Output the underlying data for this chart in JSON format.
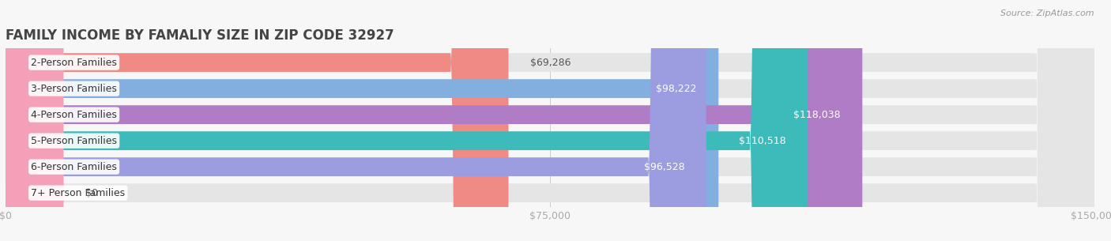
{
  "title": "FAMILY INCOME BY FAMALIY SIZE IN ZIP CODE 32927",
  "source": "Source: ZipAtlas.com",
  "categories": [
    "2-Person Families",
    "3-Person Families",
    "4-Person Families",
    "5-Person Families",
    "6-Person Families",
    "7+ Person Families"
  ],
  "values": [
    69286,
    98222,
    118038,
    110518,
    96528,
    0
  ],
  "bar_colors": [
    "#F08A85",
    "#82AEE0",
    "#B07CC6",
    "#3DBBBB",
    "#9B9DE0",
    "#F4A0B8"
  ],
  "xlim": [
    0,
    150000
  ],
  "xticks": [
    0,
    75000,
    150000
  ],
  "xtick_labels": [
    "$0",
    "$75,000",
    "$150,000"
  ],
  "background_color": "#f7f7f7",
  "bar_background": "#e5e5e5",
  "bar_height": 0.72,
  "title_fontsize": 12,
  "tick_fontsize": 9,
  "label_fontsize": 9,
  "value_fontsize": 9,
  "rounding_size": 10000,
  "zero_stub": 8000
}
